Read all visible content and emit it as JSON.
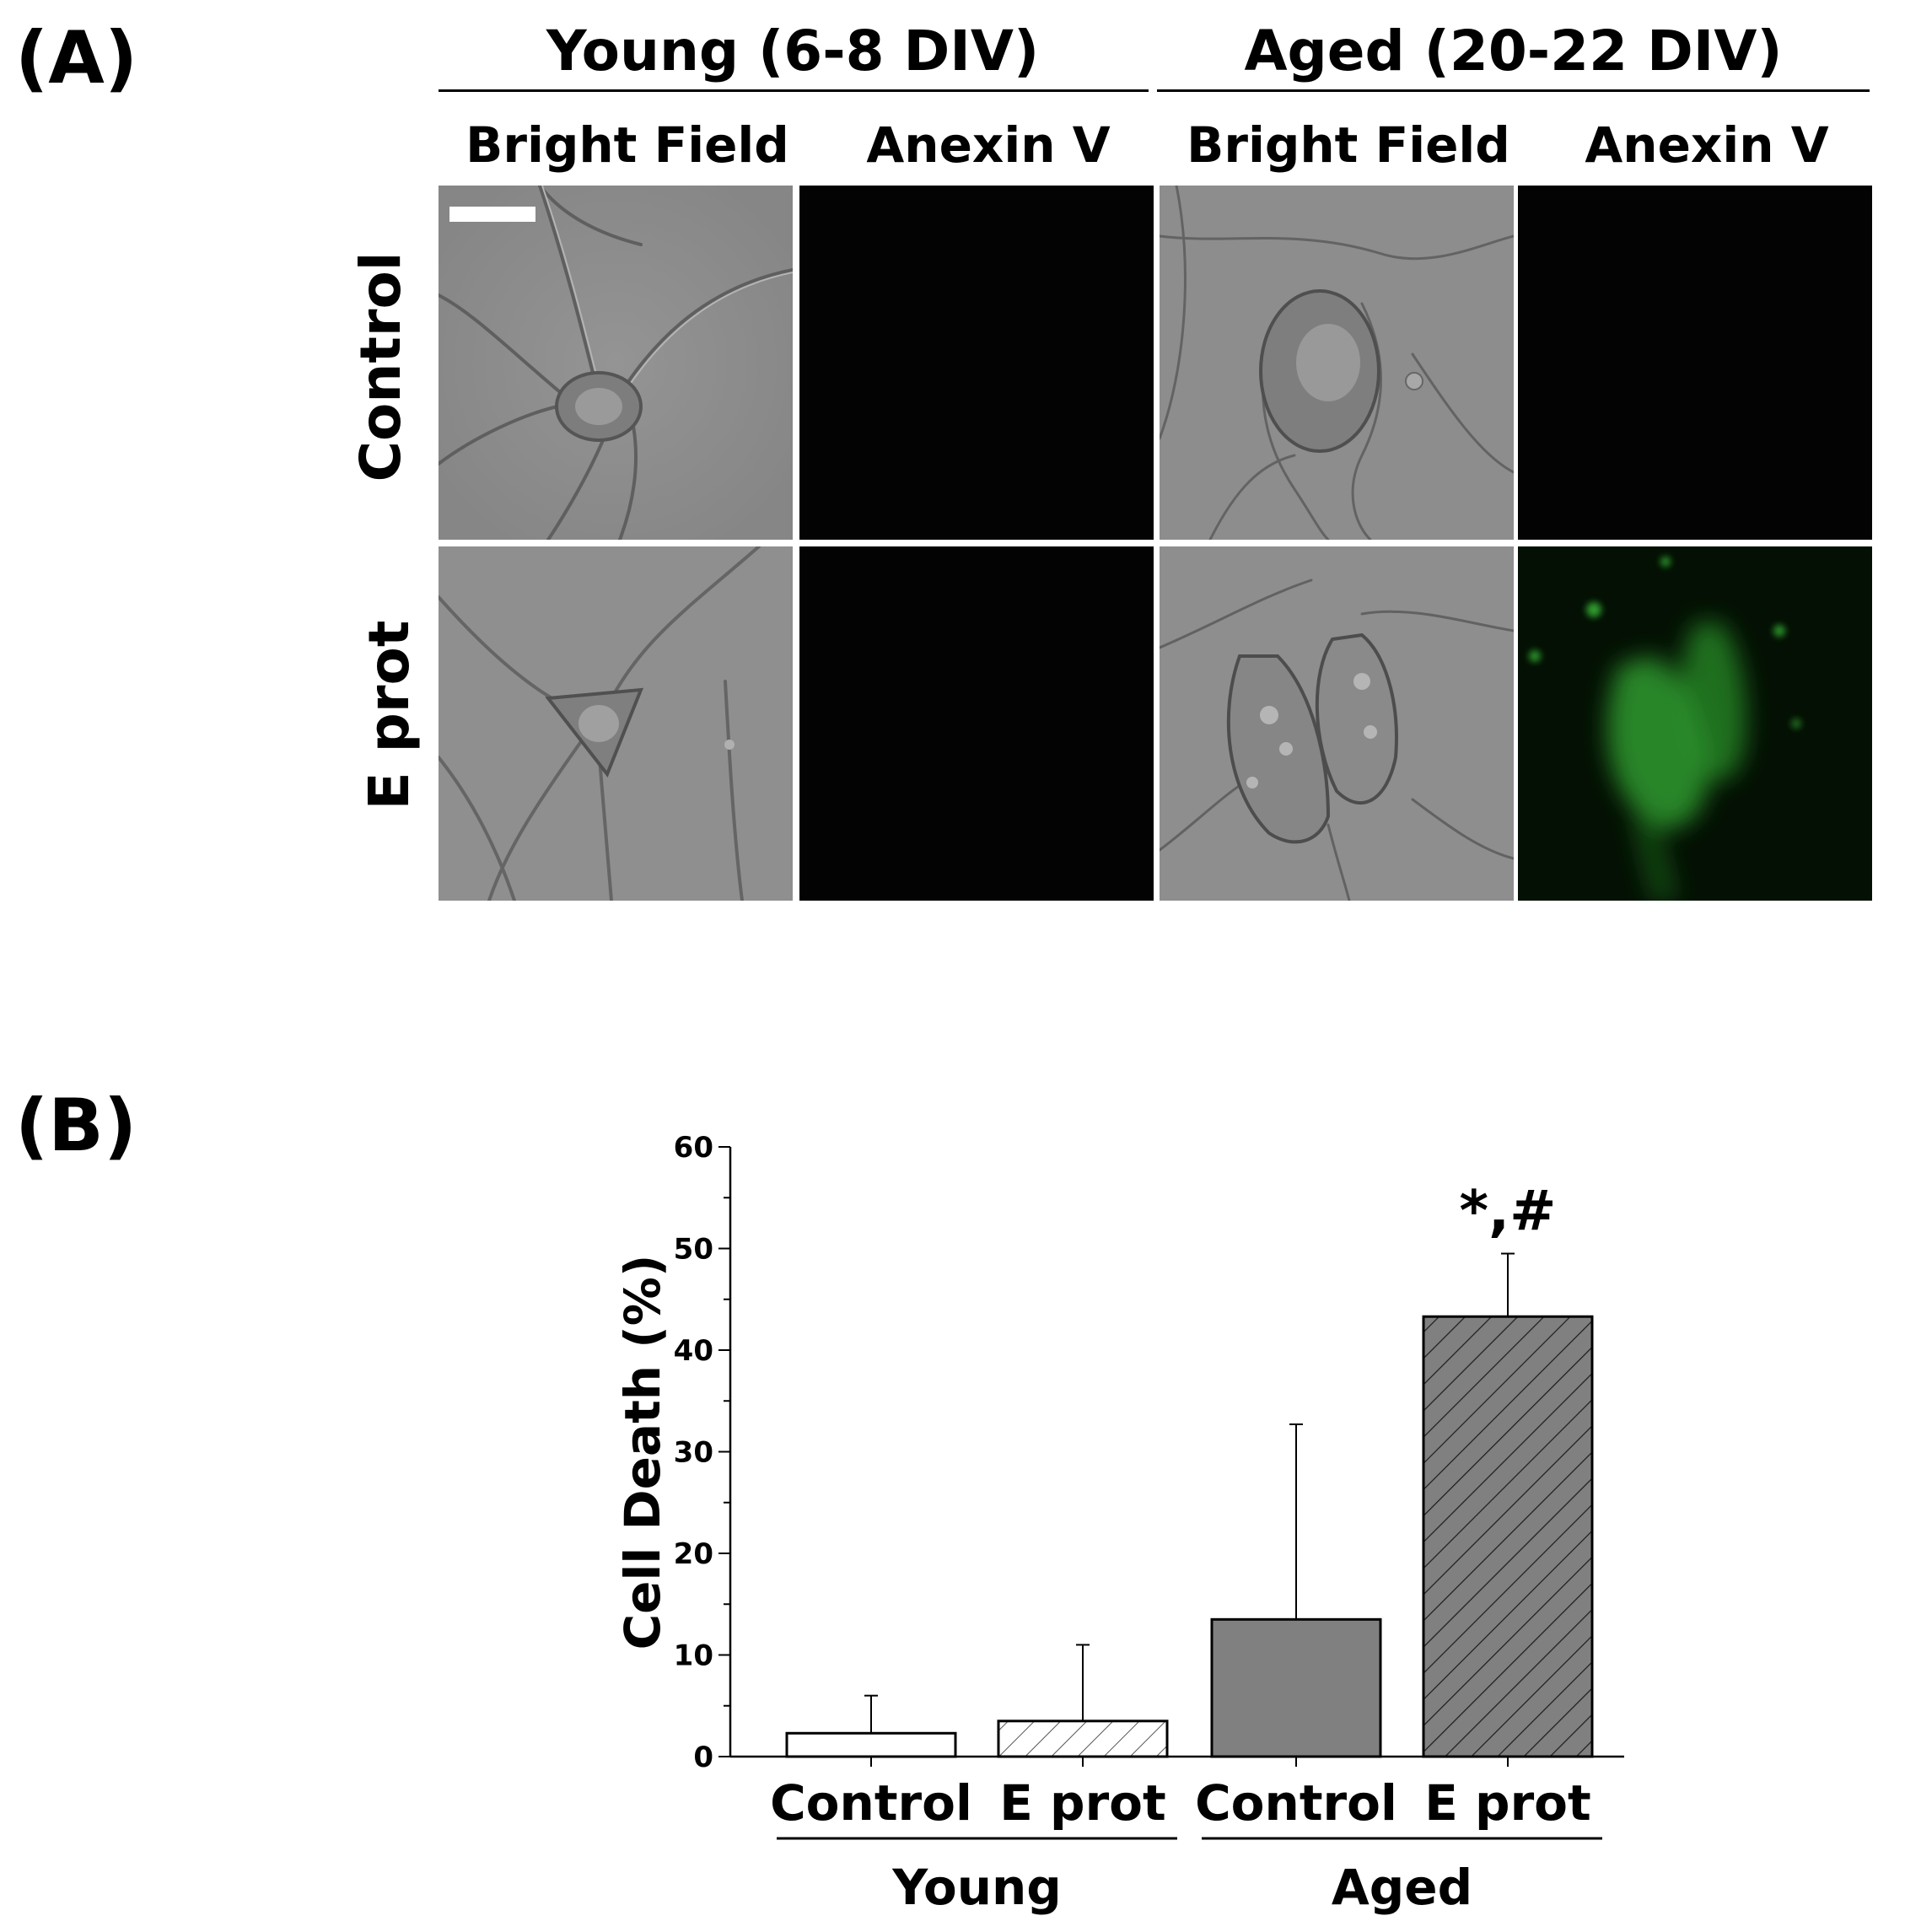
{
  "panel_a": {
    "letter": "(A)",
    "groups": [
      {
        "title": "Young (6-8 DIV)"
      },
      {
        "title": "Aged (20-22 DIV)"
      }
    ],
    "columns": [
      "Bright Field",
      "Anexin V",
      "Bright Field",
      "Anexin V"
    ],
    "rows": [
      "Control",
      "E prot"
    ],
    "fluorescence_color": "#2f9a2f"
  },
  "panel_b": {
    "letter": "(B)"
  },
  "chart_data": {
    "type": "bar",
    "categories": [
      "Control",
      "E prot",
      "Control",
      "E prot"
    ],
    "groups": [
      {
        "label": "Young",
        "categories": [
          0,
          1
        ]
      },
      {
        "label": "Aged",
        "categories": [
          2,
          3
        ]
      }
    ],
    "values": [
      2.3,
      3.5,
      13.5,
      43.3
    ],
    "error_upper": [
      6.0,
      11.0,
      32.7,
      49.5
    ],
    "bar_styles": [
      {
        "fill": "#ffffff",
        "hatch": false
      },
      {
        "fill": "#ffffff",
        "hatch": true
      },
      {
        "fill": "#808080",
        "hatch": false
      },
      {
        "fill": "#808080",
        "hatch": true
      }
    ],
    "annotations": [
      {
        "category": 3,
        "text": "*,#"
      }
    ],
    "ylabel": "Cell Death (%)",
    "xlabel": "",
    "ylim": [
      0,
      60
    ],
    "yticks": [
      0,
      10,
      20,
      30,
      40,
      50,
      60
    ],
    "grid": false
  }
}
